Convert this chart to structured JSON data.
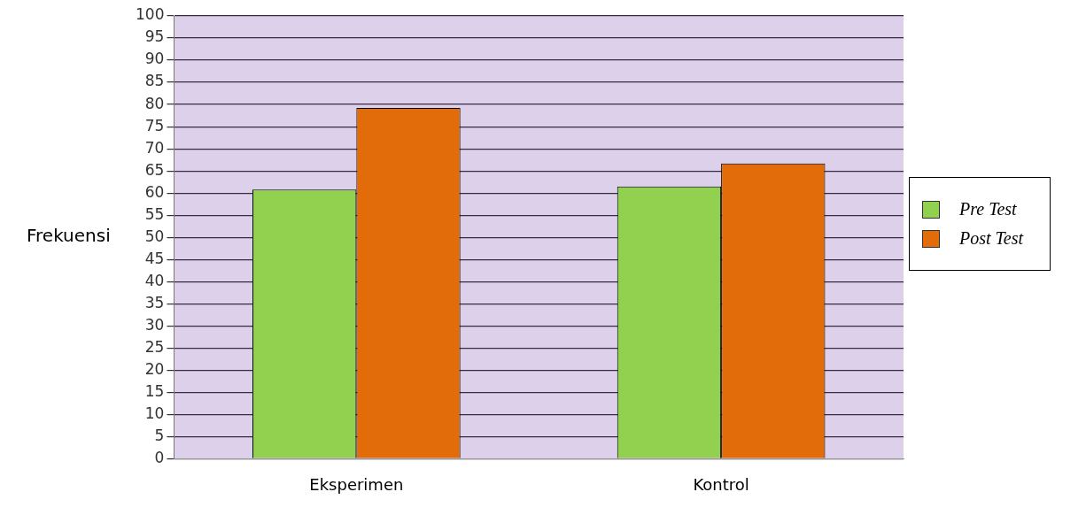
{
  "chart_data": {
    "type": "bar",
    "ylabel": "Frekuensi",
    "categories": [
      "Eksperimen",
      "Kontrol"
    ],
    "series": [
      {
        "name": "Pre Test",
        "color": "#92d050",
        "values": [
          60.8,
          61.5
        ]
      },
      {
        "name": "Post Test",
        "color": "#e36c0a",
        "values": [
          79.2,
          66.7
        ]
      }
    ],
    "ylim": [
      0,
      100
    ],
    "yticks": [
      0,
      5,
      10,
      15,
      20,
      25,
      30,
      35,
      40,
      45,
      50,
      55,
      60,
      65,
      70,
      75,
      80,
      85,
      90,
      95,
      100
    ],
    "grid": "y",
    "legend": "right"
  }
}
